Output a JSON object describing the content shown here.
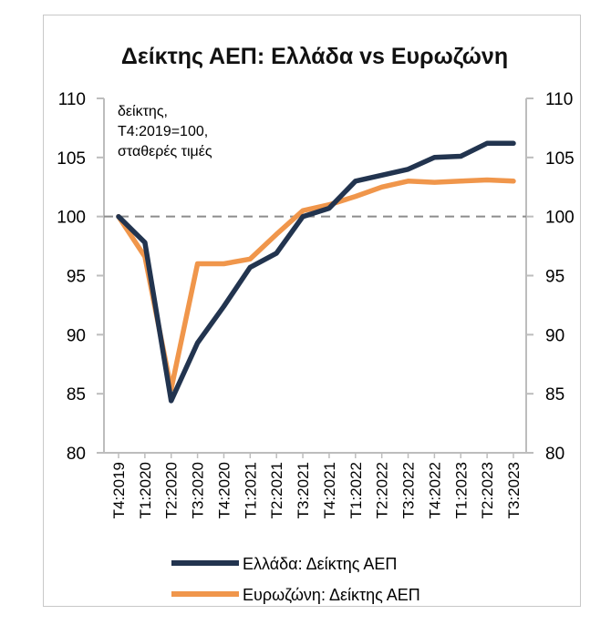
{
  "chart_data": {
    "type": "line",
    "title": "Δείκτης ΑΕΠ: Ελλάδα vs Ευρωζώνη",
    "annotation": [
      "δείκτης,",
      "Τ4:2019=100,",
      "σταθερές τιμές"
    ],
    "categories": [
      "T4:2019",
      "T1:2020",
      "T2:2020",
      "T3:2020",
      "T4:2020",
      "T1:2021",
      "T2:2021",
      "T3:2021",
      "T4:2021",
      "T1:2022",
      "T2:2022",
      "T3:2022",
      "T4:2022",
      "T1:2023",
      "T2:2023",
      "T3:2023"
    ],
    "series": [
      {
        "name": "Ελλάδα: Δείκτης ΑΕΠ",
        "color": "#22344f",
        "values": [
          100,
          97.8,
          84.4,
          89.3,
          92.4,
          95.7,
          96.9,
          100.0,
          100.7,
          103.0,
          103.5,
          104.0,
          105.0,
          105.1,
          106.2,
          106.2
        ]
      },
      {
        "name": "Ευρωζώνη: Δείκτης ΑΕΠ",
        "color": "#f0964b",
        "values": [
          100,
          96.6,
          85.4,
          96.0,
          96.0,
          96.4,
          98.5,
          100.5,
          101.0,
          101.7,
          102.5,
          103.0,
          102.9,
          103.0,
          103.1,
          103.0
        ]
      }
    ],
    "reference_line": 100,
    "ylim": [
      80,
      110
    ],
    "yticks": [
      80,
      85,
      90,
      95,
      100,
      105,
      110
    ],
    "legend_position": "bottom",
    "grid": false
  }
}
